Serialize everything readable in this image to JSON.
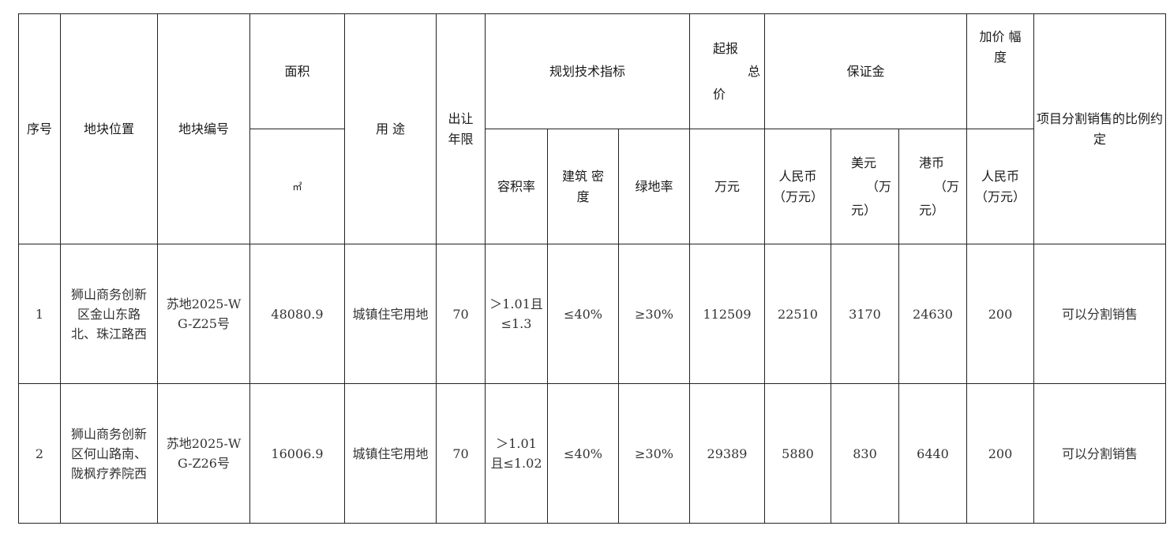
{
  "header": {
    "seq": "序号",
    "location": "地块位置",
    "parcel_no": "地块编号",
    "area": "面积",
    "area_unit": "㎡",
    "usage": "用 途",
    "term": "出让年限",
    "planning": "规划技术指标",
    "far": "容积率",
    "density": "建筑 密度",
    "green": "绿地率",
    "start_price_l1": "起报",
    "start_price_l2": "总",
    "start_price_l3": "价",
    "start_price_unit": "万元",
    "deposit": "保证金",
    "deposit_rmb": "人民币（万元）",
    "deposit_usd_l1": "美元",
    "deposit_usd_l2": "（万",
    "deposit_usd_l3": "元）",
    "deposit_hkd_l1": "港币",
    "deposit_hkd_l2": "（万",
    "deposit_hkd_l3": "元）",
    "increment": "加价 幅度",
    "increment_unit": "人民币（万元）",
    "split_sale": "项目分割销售的比例约定"
  },
  "rows": [
    {
      "seq": "1",
      "location": "狮山商务创新区金山东路北、珠江路西",
      "parcel_no": "苏地2025-WG-Z25号",
      "area": "48080.9",
      "usage": "城镇住宅用地",
      "term": "70",
      "far": "＞1.01且≤1.3",
      "density": "≤40%",
      "green": "≥30%",
      "start_price": "112509",
      "deposit_rmb": "22510",
      "deposit_usd": "3170",
      "deposit_hkd": "24630",
      "increment": "200",
      "split_sale": "可以分割销售"
    },
    {
      "seq": "2",
      "location": "狮山商务创新区何山路南、陇枫疗养院西",
      "parcel_no": "苏地2025-WG-Z26号",
      "area": "16006.9",
      "usage": "城镇住宅用地",
      "term": "70",
      "far": "＞1.01且≤1.02",
      "density": "≤40%",
      "green": "≥30%",
      "start_price": "29389",
      "deposit_rmb": "5880",
      "deposit_usd": "830",
      "deposit_hkd": "6440",
      "increment": "200",
      "split_sale": "可以分割销售"
    }
  ]
}
